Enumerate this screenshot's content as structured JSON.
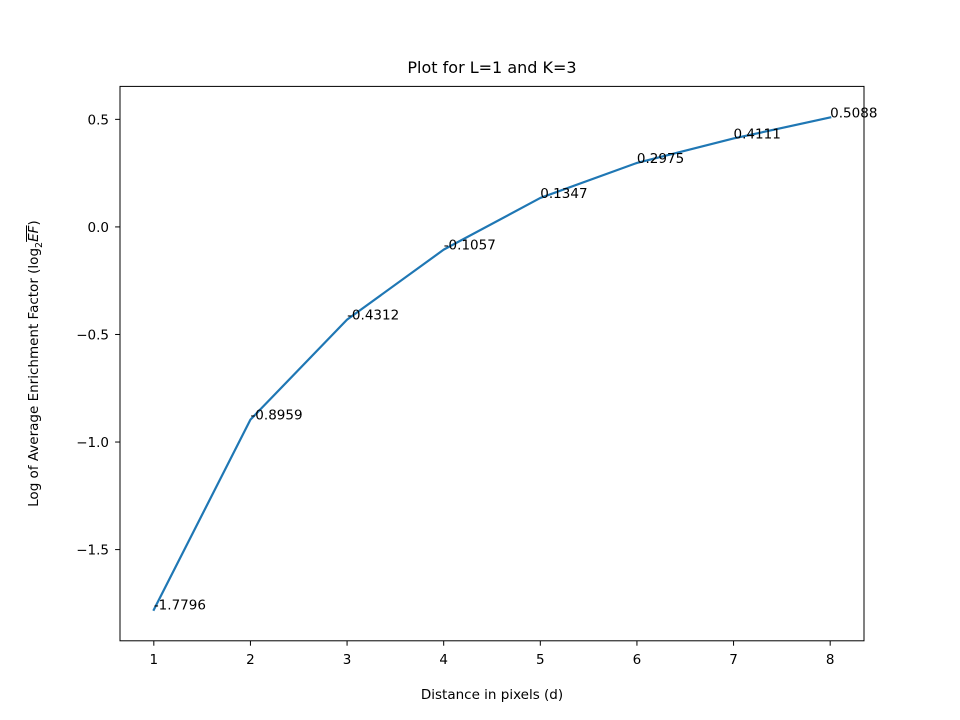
{
  "chart_data": {
    "type": "line",
    "title": "Plot for L=1 and K=3",
    "xlabel": "Distance in pixels (d)",
    "ylabel_text": "Log of Average Enrichment Factor (log",
    "ylabel_sub": "2",
    "ylabel_over": "EF",
    "ylabel_close": ")",
    "x": [
      1,
      2,
      3,
      4,
      5,
      6,
      7,
      8
    ],
    "y": [
      -1.7796,
      -0.8959,
      -0.4312,
      -0.1057,
      0.1347,
      0.2975,
      0.4111,
      0.5088
    ],
    "data_labels": [
      "-1.7796",
      "-0.8959",
      "-0.4312",
      "-0.1057",
      "0.1347",
      "0.2975",
      "0.4111",
      "0.5088"
    ],
    "xticks": [
      1,
      2,
      3,
      4,
      5,
      6,
      7,
      8
    ],
    "xtick_labels": [
      "1",
      "2",
      "3",
      "4",
      "5",
      "6",
      "7",
      "8"
    ],
    "yticks": [
      -1.5,
      -1.0,
      -0.5,
      0.0,
      0.5
    ],
    "ytick_labels": [
      "−1.5",
      "−1.0",
      "−0.5",
      "0.0",
      "0.5"
    ],
    "xlim": [
      0.65,
      8.35
    ],
    "ylim": [
      -1.924,
      0.6532
    ],
    "grid": false,
    "line_color": "#1f77b4"
  }
}
